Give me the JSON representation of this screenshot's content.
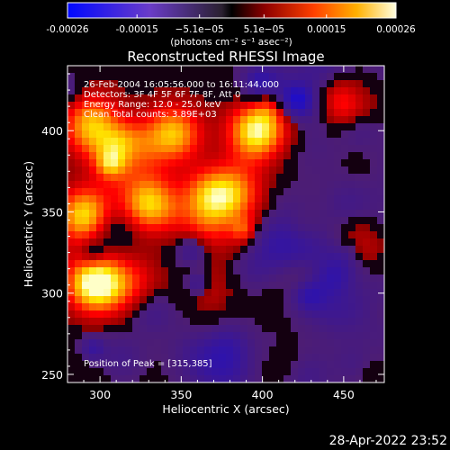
{
  "colorbar": {
    "tick_labels": [
      "-0.00026",
      "-0.00015",
      "−5.1e−05",
      "5.1e−05",
      "0.00015",
      "0.00026"
    ],
    "tick_values": [
      -0.00026,
      -0.00015,
      -5.1e-05,
      5.1e-05,
      0.00015,
      0.00026
    ],
    "range": [
      -0.00026,
      0.00026
    ],
    "unit_label": "(photons cm⁻² s⁻¹ asec⁻²)"
  },
  "chart_data": {
    "type": "heatmap",
    "title": "Reconstructed RHESSI Image",
    "xlabel": "Heliocentric X (arcsec)",
    "ylabel": "Heliocentric Y (arcsec)",
    "xlim": [
      280,
      475
    ],
    "ylim": [
      245,
      440
    ],
    "x_ticks": [
      300,
      350,
      400,
      450
    ],
    "y_ticks": [
      250,
      300,
      350,
      400
    ],
    "color_scale": "red-temperature with blue negatives",
    "bright_sources": [
      {
        "x": 297,
        "y": 306,
        "level": 1.0
      },
      {
        "x": 292,
        "y": 347,
        "level": 0.95
      },
      {
        "x": 315,
        "y": 385,
        "level": 0.9
      },
      {
        "x": 397,
        "y": 401,
        "level": 0.9
      },
      {
        "x": 345,
        "y": 398,
        "level": 0.7
      },
      {
        "x": 368,
        "y": 360,
        "level": 0.85
      },
      {
        "x": 330,
        "y": 355,
        "level": 0.75
      },
      {
        "x": 295,
        "y": 405,
        "level": 0.6
      },
      {
        "x": 383,
        "y": 362,
        "level": 0.5
      }
    ]
  },
  "annotations": {
    "time": "26-Feb-2004 16:05:56.000 to 16:11:44.000",
    "detectors": "Detectors: 3F 4F 5F 6F 7F 8F, Att 0",
    "energy": "Energy Range: 12.0 - 25.0 keV",
    "clean": "Clean    Total counts: 3.89E+03",
    "peak": "Position of Peak = [315,385]"
  },
  "footer": {
    "timestamp": "28-Apr-2022 23:52"
  }
}
